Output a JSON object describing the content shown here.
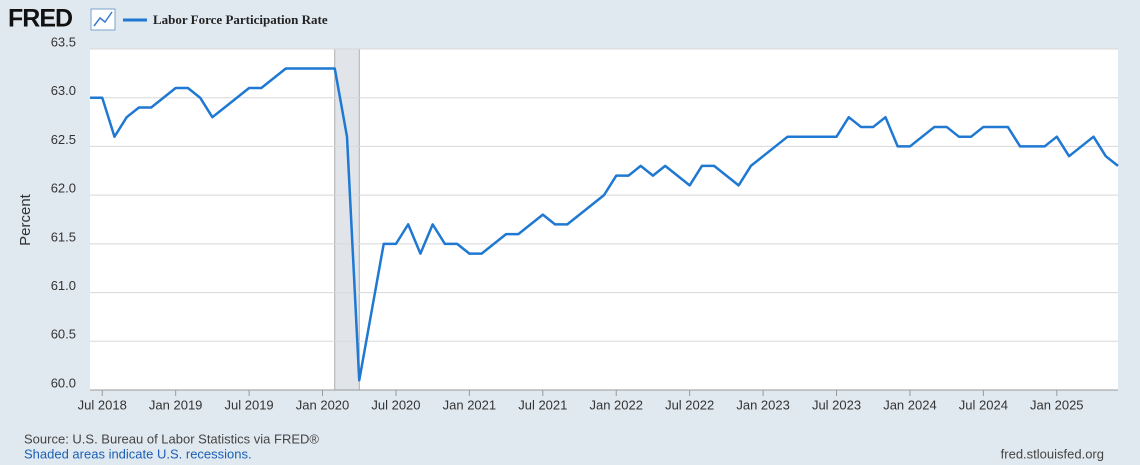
{
  "logo": "FRED",
  "chart_data": {
    "type": "line",
    "y_label": "Percent",
    "x": [
      "2018-06",
      "2018-07",
      "2018-08",
      "2018-09",
      "2018-10",
      "2018-11",
      "2018-12",
      "2019-01",
      "2019-02",
      "2019-03",
      "2019-04",
      "2019-05",
      "2019-06",
      "2019-07",
      "2019-08",
      "2019-09",
      "2019-10",
      "2019-11",
      "2019-12",
      "2020-01",
      "2020-02",
      "2020-03",
      "2020-04",
      "2020-05",
      "2020-06",
      "2020-07",
      "2020-08",
      "2020-09",
      "2020-10",
      "2020-11",
      "2020-12",
      "2021-01",
      "2021-02",
      "2021-03",
      "2021-04",
      "2021-05",
      "2021-06",
      "2021-07",
      "2021-08",
      "2021-09",
      "2021-10",
      "2021-11",
      "2021-12",
      "2022-01",
      "2022-02",
      "2022-03",
      "2022-04",
      "2022-05",
      "2022-06",
      "2022-07",
      "2022-08",
      "2022-09",
      "2022-10",
      "2022-11",
      "2022-12",
      "2023-01",
      "2023-02",
      "2023-03",
      "2023-04",
      "2023-05",
      "2023-06",
      "2023-07",
      "2023-08",
      "2023-09",
      "2023-10",
      "2023-11",
      "2023-12",
      "2024-01",
      "2024-02",
      "2024-03",
      "2024-04",
      "2024-05",
      "2024-06",
      "2024-07",
      "2024-08",
      "2024-09",
      "2024-10",
      "2024-11",
      "2024-12",
      "2025-01",
      "2025-02",
      "2025-03",
      "2025-04",
      "2025-05",
      "2025-06"
    ],
    "series": [
      {
        "name": "Labor Force Participation Rate",
        "color": "#1f78d1",
        "values": [
          63.0,
          63.0,
          62.6,
          62.8,
          62.9,
          62.9,
          63.0,
          63.1,
          63.1,
          63.0,
          62.8,
          62.9,
          63.0,
          63.1,
          63.1,
          63.2,
          63.3,
          63.3,
          63.3,
          63.3,
          63.3,
          62.6,
          60.1,
          60.8,
          61.5,
          61.5,
          61.7,
          61.4,
          61.7,
          61.5,
          61.5,
          61.4,
          61.4,
          61.5,
          61.6,
          61.6,
          61.7,
          61.8,
          61.7,
          61.7,
          61.8,
          61.9,
          62.0,
          62.2,
          62.2,
          62.3,
          62.2,
          62.3,
          62.2,
          62.1,
          62.3,
          62.3,
          62.2,
          62.1,
          62.3,
          62.4,
          62.5,
          62.6,
          62.6,
          62.6,
          62.6,
          62.6,
          62.8,
          62.7,
          62.7,
          62.8,
          62.5,
          62.5,
          62.6,
          62.7,
          62.7,
          62.6,
          62.6,
          62.7,
          62.7,
          62.7,
          62.5,
          62.5,
          62.5,
          62.6,
          62.4,
          62.5,
          62.6,
          62.4,
          62.3
        ]
      }
    ],
    "recession": {
      "start": "2020-02",
      "end": "2020-04",
      "color": "#e1e5ea"
    },
    "xlim": [
      "2018-06",
      "2025-06"
    ],
    "xticks": [
      {
        "value": "2018-07",
        "label": "Jul 2018"
      },
      {
        "value": "2019-01",
        "label": "Jan 2019"
      },
      {
        "value": "2019-07",
        "label": "Jul 2019"
      },
      {
        "value": "2020-01",
        "label": "Jan 2020"
      },
      {
        "value": "2020-07",
        "label": "Jul 2020"
      },
      {
        "value": "2021-01",
        "label": "Jan 2021"
      },
      {
        "value": "2021-07",
        "label": "Jul 2021"
      },
      {
        "value": "2022-01",
        "label": "Jan 2022"
      },
      {
        "value": "2022-07",
        "label": "Jul 2022"
      },
      {
        "value": "2023-01",
        "label": "Jan 2023"
      },
      {
        "value": "2023-07",
        "label": "Jul 2023"
      },
      {
        "value": "2024-01",
        "label": "Jan 2024"
      },
      {
        "value": "2024-07",
        "label": "Jul 2024"
      },
      {
        "value": "2025-01",
        "label": "Jan 2025"
      }
    ],
    "ylim": [
      60.0,
      63.5
    ],
    "yticks": [
      {
        "value": 60.0,
        "label": "60.0"
      },
      60.5,
      {
        "value": 61.0,
        "label": "61.0"
      },
      61.5,
      {
        "value": 62.0,
        "label": "62.0"
      },
      62.5,
      {
        "value": 63.0,
        "label": "63.0"
      },
      63.5
    ],
    "grid": true
  },
  "footer": {
    "source": "Source: U.S. Bureau of Labor Statistics via FRED®",
    "note": "Shaded areas indicate U.S. recessions.",
    "site": "fred.stlouisfed.org"
  }
}
